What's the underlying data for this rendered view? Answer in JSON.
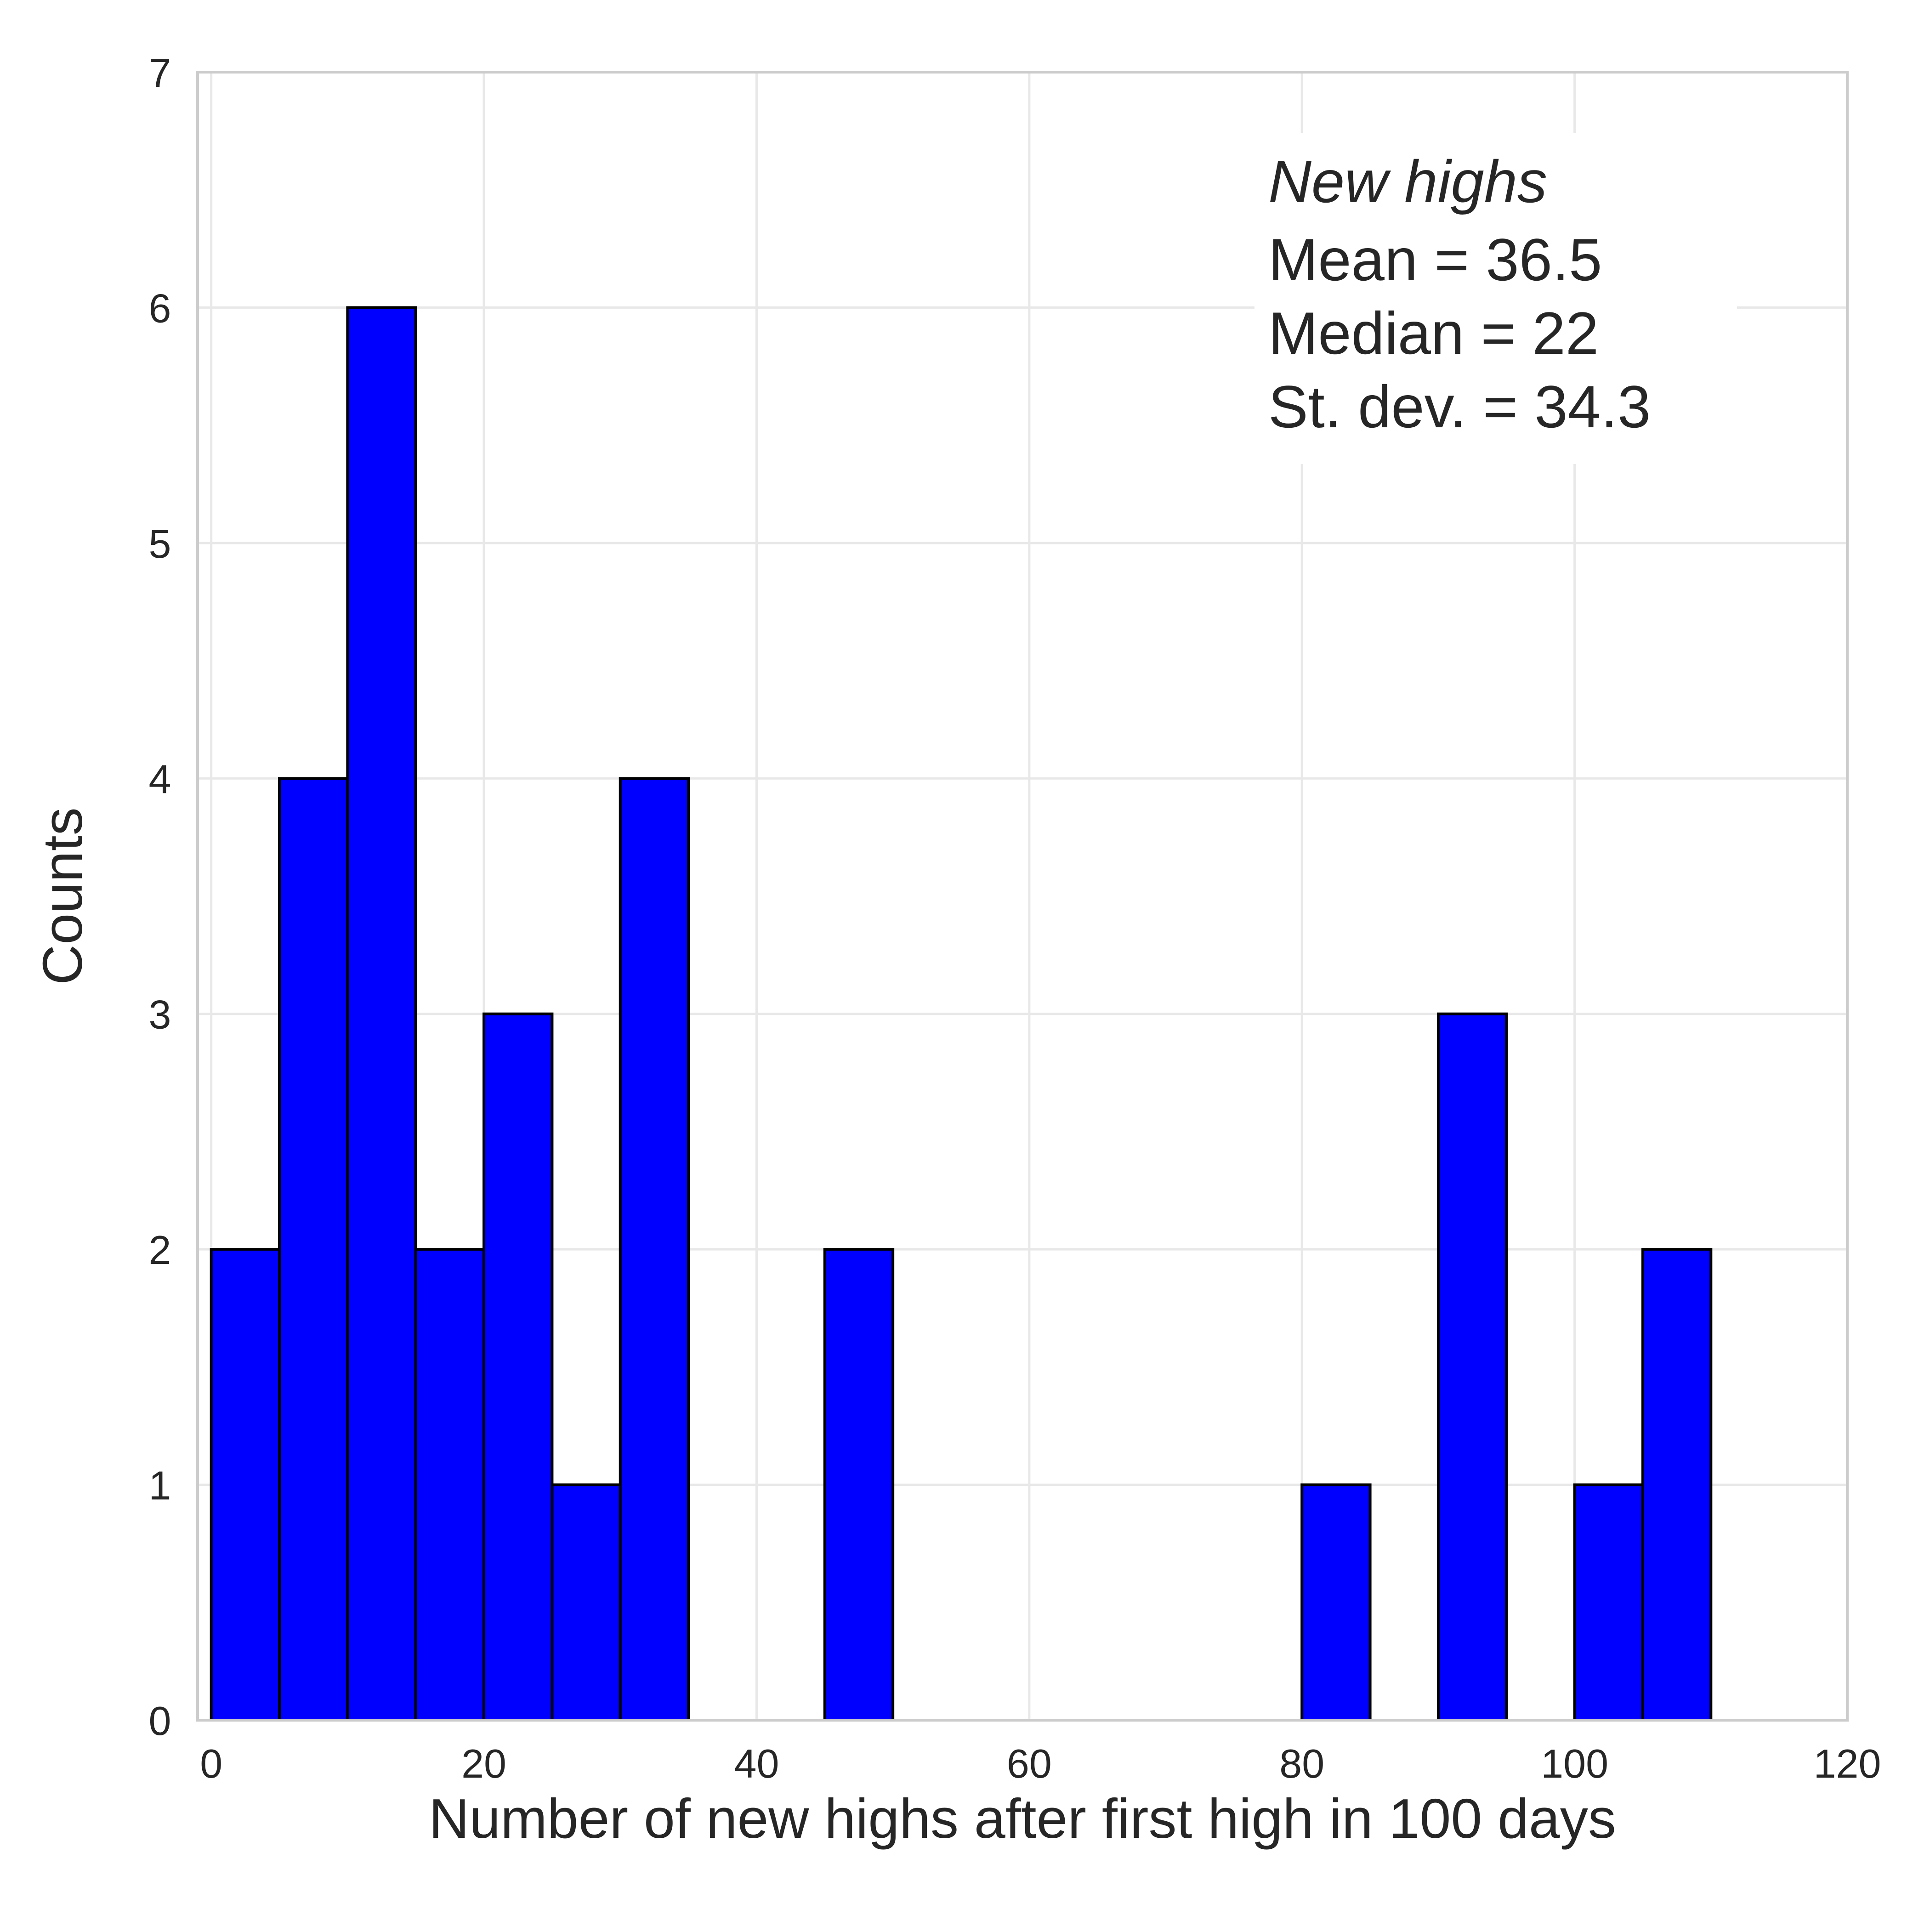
{
  "chart_data": {
    "type": "bar",
    "subtype": "histogram",
    "xlabel": "Number of new highs after first high in 100 days",
    "ylabel": "Counts",
    "xlim": [
      -1,
      120
    ],
    "ylim": [
      0,
      7
    ],
    "xticks": [
      0,
      20,
      40,
      60,
      80,
      100,
      120
    ],
    "yticks": [
      0,
      1,
      2,
      3,
      4,
      5,
      6,
      7
    ],
    "grid": true,
    "bin_width": 5,
    "bins": [
      {
        "start": 0,
        "end": 5,
        "count": 2
      },
      {
        "start": 5,
        "end": 10,
        "count": 4
      },
      {
        "start": 10,
        "end": 15,
        "count": 6
      },
      {
        "start": 15,
        "end": 20,
        "count": 2
      },
      {
        "start": 20,
        "end": 25,
        "count": 3
      },
      {
        "start": 25,
        "end": 30,
        "count": 1
      },
      {
        "start": 30,
        "end": 35,
        "count": 4
      },
      {
        "start": 45,
        "end": 50,
        "count": 2
      },
      {
        "start": 80,
        "end": 85,
        "count": 1
      },
      {
        "start": 90,
        "end": 95,
        "count": 3
      },
      {
        "start": 100,
        "end": 105,
        "count": 1
      },
      {
        "start": 105,
        "end": 110,
        "count": 2
      }
    ],
    "colors": {
      "bar_fill": "#0000ff",
      "bar_edge": "#000000",
      "grid": "#e8e8e8",
      "spine": "#cccccc"
    },
    "annotation": {
      "title": "New highs",
      "lines": [
        "Mean = 36.5",
        "Median = 22",
        "St. dev. = 34.3"
      ],
      "placement": "top-right"
    }
  }
}
